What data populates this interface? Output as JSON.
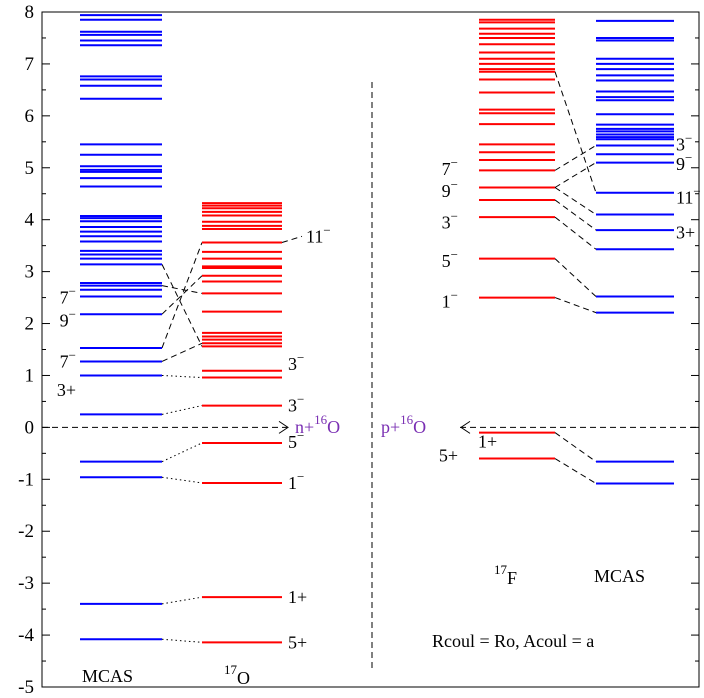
{
  "chart_data": {
    "type": "energy-level-diagram",
    "y_axis": {
      "range": [
        -5,
        8
      ],
      "ticks": [
        "8",
        "7",
        "6",
        "5",
        "4",
        "3",
        "2",
        "1",
        "0",
        "-1",
        "-2",
        "-3",
        "-4",
        "-5"
      ]
    },
    "colors": {
      "mcas": "#0000ff",
      "experiment": "#ff0000",
      "reaction": "#7a2fb3"
    },
    "columns": {
      "mcas_left": {
        "label": "MCAS",
        "energies": [
          -4.08,
          -3.4,
          -0.96,
          -0.66,
          0.25,
          1.0,
          1.27,
          1.53,
          2.18,
          2.52,
          2.65,
          2.73,
          2.78,
          3.14,
          3.25,
          3.33,
          3.4,
          3.58,
          3.68,
          3.77,
          3.86,
          3.97,
          4.03,
          4.07,
          4.64,
          4.8,
          4.92,
          4.96,
          5.03,
          5.25,
          5.45,
          6.33,
          6.58,
          6.7,
          6.76,
          7.36,
          7.45,
          7.56,
          7.62,
          7.85,
          7.94
        ]
      },
      "o17": {
        "label": "O",
        "label_sup": "17",
        "energies": [
          -4.14,
          -3.27,
          -1.07,
          -0.3,
          0.42,
          0.96,
          1.09,
          1.56,
          1.62,
          1.69,
          1.75,
          1.82,
          2.23,
          2.58,
          2.81,
          2.92,
          3.07,
          3.1,
          3.25,
          3.38,
          3.56,
          3.82,
          3.88,
          3.96,
          4.08,
          4.15,
          4.22,
          4.27,
          4.32
        ]
      },
      "f17": {
        "label": "F",
        "label_sup": "17",
        "energies": [
          -0.6,
          -0.1,
          2.5,
          3.25,
          4.05,
          4.38,
          4.62,
          4.95,
          5.15,
          5.3,
          5.45,
          5.84,
          6.05,
          6.12,
          6.45,
          6.7,
          6.85,
          6.9,
          7.0,
          7.1,
          7.22,
          7.38,
          7.5,
          7.58,
          7.68,
          7.8,
          7.85
        ]
      },
      "mcas_right": {
        "label": "MCAS",
        "energies": [
          -1.08,
          -0.66,
          2.21,
          2.52,
          3.43,
          3.8,
          4.1,
          4.52,
          5.1,
          5.26,
          5.43,
          5.55,
          5.59,
          5.64,
          5.7,
          5.75,
          5.83,
          6.03,
          6.3,
          6.36,
          6.47,
          6.68,
          6.78,
          6.9,
          7.0,
          7.1,
          7.45,
          7.5,
          7.83
        ]
      }
    },
    "left_labels": [
      {
        "text": "7",
        "sup": "−",
        "y": 2.5
      },
      {
        "text": "9",
        "sup": "−",
        "y": 2.06
      },
      {
        "text": "7",
        "sup": "−",
        "y": 1.27
      },
      {
        "text": "3+",
        "y": 0.72
      }
    ],
    "o17_labels": [
      {
        "text": "11",
        "sup": "−",
        "y": 3.68
      },
      {
        "text": "3",
        "sup": "−",
        "y": 1.22
      },
      {
        "text": "3",
        "sup": "−",
        "y": 0.42
      },
      {
        "text": "5",
        "sup": "−",
        "y": -0.28
      },
      {
        "text": "1",
        "sup": "−",
        "y": -1.07
      },
      {
        "text": "1+",
        "y": -3.27
      },
      {
        "text": "5+",
        "y": -4.14
      }
    ],
    "f17_labels": [
      {
        "text": "7",
        "sup": "−",
        "y": 4.98
      },
      {
        "text": "9",
        "sup": "−",
        "y": 4.55
      },
      {
        "text": "3",
        "sup": "−",
        "y": 3.95
      },
      {
        "text": "5",
        "sup": "−",
        "y": 3.2
      },
      {
        "text": "1",
        "sup": "−",
        "y": 2.42
      },
      {
        "text": "1+",
        "y": -0.27
      },
      {
        "text": "5+",
        "y": -0.54
      }
    ],
    "mcas_right_labels": [
      {
        "text": "3",
        "sup": "−",
        "y": 5.45
      },
      {
        "text": "9",
        "sup": "−",
        "y": 5.07
      },
      {
        "text": "11",
        "sup": "−",
        "y": 4.43
      },
      {
        "text": "3+",
        "y": 3.75
      }
    ],
    "thresholds": {
      "left": {
        "prefix": "n+",
        "sup": "16",
        "suffix": "O"
      },
      "right": {
        "prefix": "p+",
        "sup": "16",
        "suffix": "O"
      }
    },
    "annotation": "Rcoul = Ro, Acoul = a",
    "connections_left": [
      {
        "mcas": -4.08,
        "o17": -4.14,
        "style": "dotted"
      },
      {
        "mcas": -3.4,
        "o17": -3.27,
        "style": "dotted"
      },
      {
        "mcas": -0.96,
        "o17": -1.07,
        "style": "dotted"
      },
      {
        "mcas": -0.66,
        "o17": -0.3,
        "style": "dotted"
      },
      {
        "mcas": 0.25,
        "o17": 0.42,
        "style": "dotted"
      },
      {
        "mcas": 1.0,
        "o17": 0.96,
        "style": "dotted"
      },
      {
        "mcas": 1.27,
        "o17": 1.62,
        "style": "dashed"
      },
      {
        "mcas": 1.53,
        "o17": 3.56,
        "style": "dashed"
      },
      {
        "mcas": 2.18,
        "o17": 2.92,
        "style": "dashed"
      },
      {
        "mcas": 2.73,
        "o17": 2.58,
        "style": "dashed"
      },
      {
        "mcas": 3.14,
        "o17": 1.56,
        "style": "dashed"
      }
    ],
    "connections_right": [
      {
        "f17": -0.6,
        "mcas": -1.08
      },
      {
        "f17": -0.1,
        "mcas": -0.66
      },
      {
        "f17": 2.5,
        "mcas": 2.21
      },
      {
        "f17": 3.25,
        "mcas": 2.52
      },
      {
        "f17": 4.05,
        "mcas": 3.43
      },
      {
        "f17": 4.38,
        "mcas": 3.8
      },
      {
        "f17": 4.62,
        "mcas": 4.1
      },
      {
        "f17": 4.62,
        "mcas": 5.1
      },
      {
        "f17": 4.95,
        "mcas": 5.43
      },
      {
        "f17": 6.85,
        "mcas": 4.52
      }
    ]
  }
}
